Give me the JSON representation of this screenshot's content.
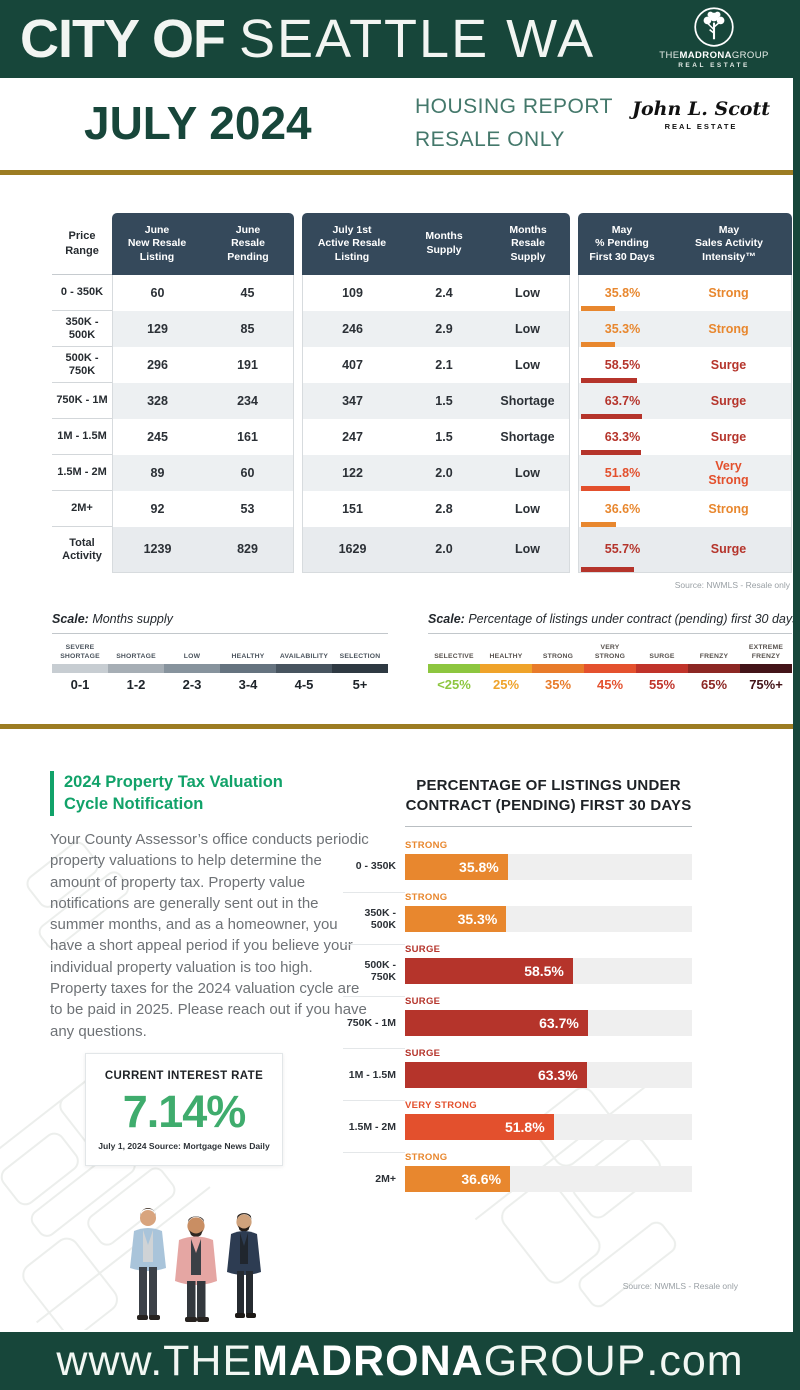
{
  "header": {
    "title_bold": "CITY OF ",
    "title_light": "SEATTLE WA",
    "brand": {
      "the": "THE",
      "name": "MADRONA",
      "group": "GROUP",
      "tagline": "REAL ESTATE"
    }
  },
  "subheader": {
    "month": "JULY 2024",
    "report_line1": "HOUSING REPORT",
    "report_line2": "RESALE ONLY",
    "jls_name": "John L. Scott",
    "jls_tagline": "REAL ESTATE"
  },
  "table": {
    "price_header": "Price\nRange",
    "g1c1": "June\nNew Resale\nListing",
    "g1c2": "June\nResale\nPending",
    "g2c1": "July 1st\nActive Resale\nListing",
    "g2c2": "Months\nSupply",
    "g2c3": "Months\nResale\nSupply",
    "g3c1": "May\n% Pending\nFirst 30 Days",
    "g3c2": "May\nSales Activity\nIntensity™",
    "rows": [
      {
        "price": "0 - 350K",
        "new_listing": "60",
        "pending": "45",
        "active": "109",
        "supply": "2.4",
        "resale_supply": "Low",
        "pct": "35.8%",
        "value": 35.8,
        "intensity": "Strong",
        "color": "#E8872E"
      },
      {
        "price": "350K - 500K",
        "new_listing": "129",
        "pending": "85",
        "active": "246",
        "supply": "2.9",
        "resale_supply": "Low",
        "pct": "35.3%",
        "value": 35.3,
        "intensity": "Strong",
        "color": "#E8872E"
      },
      {
        "price": "500K - 750K",
        "new_listing": "296",
        "pending": "191",
        "active": "407",
        "supply": "2.1",
        "resale_supply": "Low",
        "pct": "58.5%",
        "value": 58.5,
        "intensity": "Surge",
        "color": "#B5342B"
      },
      {
        "price": "750K - 1M",
        "new_listing": "328",
        "pending": "234",
        "active": "347",
        "supply": "1.5",
        "resale_supply": "Shortage",
        "pct": "63.7%",
        "value": 63.7,
        "intensity": "Surge",
        "color": "#B5342B"
      },
      {
        "price": "1M - 1.5M",
        "new_listing": "245",
        "pending": "161",
        "active": "247",
        "supply": "1.5",
        "resale_supply": "Shortage",
        "pct": "63.3%",
        "value": 63.3,
        "intensity": "Surge",
        "color": "#B5342B"
      },
      {
        "price": "1.5M - 2M",
        "new_listing": "89",
        "pending": "60",
        "active": "122",
        "supply": "2.0",
        "resale_supply": "Low",
        "pct": "51.8%",
        "value": 51.8,
        "intensity": "Very\nStrong",
        "color": "#E3502D"
      },
      {
        "price": "2M+",
        "new_listing": "92",
        "pending": "53",
        "active": "151",
        "supply": "2.8",
        "resale_supply": "Low",
        "pct": "36.6%",
        "value": 36.6,
        "intensity": "Strong",
        "color": "#E8872E"
      },
      {
        "price": "Total\nActivity",
        "new_listing": "1239",
        "pending": "829",
        "active": "1629",
        "supply": "2.0",
        "resale_supply": "Low",
        "pct": "55.7%",
        "value": 55.7,
        "intensity": "Surge",
        "color": "#B5342B",
        "is_total": true
      }
    ],
    "source": "Source: NWMLS  -  Resale only"
  },
  "supply_scale": {
    "title_bold": "Scale:",
    "title_rest": " Months supply",
    "segments": [
      {
        "label": "SEVERE\nSHORTAGE",
        "value": "0-1",
        "color": "#C7CDD2"
      },
      {
        "label": "SHORTAGE",
        "value": "1-2",
        "color": "#A6AEB5"
      },
      {
        "label": "LOW",
        "value": "2-3",
        "color": "#87939D"
      },
      {
        "label": "HEALTHY",
        "value": "3-4",
        "color": "#65737F"
      },
      {
        "label": "AVAILABILITY",
        "value": "4-5",
        "color": "#47545F"
      },
      {
        "label": "SELECTION",
        "value": "5+",
        "color": "#2E3942"
      }
    ]
  },
  "pending_scale": {
    "title_bold": "Scale:",
    "title_rest": " Percentage of listings under contract (pending) first 30 days",
    "segments": [
      {
        "label": "SELECTIVE",
        "value": "<25%",
        "color": "#8DC63F"
      },
      {
        "label": "HEALTHY",
        "value": "25%",
        "color": "#EFA32A"
      },
      {
        "label": "STRONG",
        "value": "35%",
        "color": "#E87B2A"
      },
      {
        "label": "VERY\nSTRONG",
        "value": "45%",
        "color": "#E4512E"
      },
      {
        "label": "SURGE",
        "value": "55%",
        "color": "#C0332A"
      },
      {
        "label": "FRENZY",
        "value": "65%",
        "color": "#8C2723"
      },
      {
        "label": "EXTREME\nFRENZY",
        "value": "75%+",
        "color": "#431418"
      }
    ]
  },
  "tax_notice": {
    "heading": "2024 Property Tax Valuation\nCycle Notification",
    "body": "Your County Assessor’s office conducts periodic property valuations to help determine the amount of property tax. Property value notifications are generally sent out in the summer months, and as a homeowner, you have a short appeal period if you believe your individual property valuation is too high. Property taxes for the 2024 valuation cycle are to be paid in 2025. Please reach out if you have any questions."
  },
  "interest_rate": {
    "label": "CURRENT INTEREST RATE",
    "value": "7.14%",
    "source": "July 1, 2024 Source: Mortgage News Daily"
  },
  "chart": {
    "title": "PERCENTAGE OF LISTINGS UNDER\nCONTRACT (PENDING) FIRST 30 DAYS",
    "bars": [
      {
        "category": "0 - 350K",
        "status": "STRONG",
        "label": "35.8%",
        "value": 35.8,
        "color": "#E8872E"
      },
      {
        "category": "350K - 500K",
        "status": "STRONG",
        "label": "35.3%",
        "value": 35.3,
        "color": "#E8872E"
      },
      {
        "category": "500K - 750K",
        "status": "SURGE",
        "label": "58.5%",
        "value": 58.5,
        "color": "#B5342B"
      },
      {
        "category": "750K - 1M",
        "status": "SURGE",
        "label": "63.7%",
        "value": 63.7,
        "color": "#B5342B"
      },
      {
        "category": "1M - 1.5M",
        "status": "SURGE",
        "label": "63.3%",
        "value": 63.3,
        "color": "#B5342B"
      },
      {
        "category": "1.5M - 2M",
        "status": "VERY STRONG",
        "label": "51.8%",
        "value": 51.8,
        "color": "#E3502D"
      },
      {
        "category": "2M+",
        "status": "STRONG",
        "label": "36.6%",
        "value": 36.6,
        "color": "#E8872E"
      }
    ],
    "source": "Source: NWMLS - Resale only"
  },
  "chart_data": [
    {
      "type": "table",
      "columns": [
        "Price Range",
        "June New Resale Listing",
        "June Resale Pending",
        "July 1st Active Resale Listing",
        "Months Supply",
        "Months Resale Supply",
        "May % Pending First 30 Days",
        "May Sales Activity Intensity™"
      ],
      "rows": [
        [
          "0 - 350K",
          60,
          45,
          109,
          2.4,
          "Low",
          "35.8%",
          "Strong"
        ],
        [
          "350K - 500K",
          129,
          85,
          246,
          2.9,
          "Low",
          "35.3%",
          "Strong"
        ],
        [
          "500K - 750K",
          296,
          191,
          407,
          2.1,
          "Low",
          "58.5%",
          "Surge"
        ],
        [
          "750K - 1M",
          328,
          234,
          347,
          1.5,
          "Shortage",
          "63.7%",
          "Surge"
        ],
        [
          "1M - 1.5M",
          245,
          161,
          247,
          1.5,
          "Shortage",
          "63.3%",
          "Surge"
        ],
        [
          "1.5M - 2M",
          89,
          60,
          122,
          2.0,
          "Low",
          "51.8%",
          "Very Strong"
        ],
        [
          "2M+",
          92,
          53,
          151,
          2.8,
          "Low",
          "36.6%",
          "Strong"
        ],
        [
          "Total Activity",
          1239,
          829,
          1629,
          2.0,
          "Low",
          "55.7%",
          "Surge"
        ]
      ],
      "source": "Source: NWMLS - Resale only"
    },
    {
      "type": "bar",
      "orientation": "horizontal",
      "title": "PERCENTAGE OF LISTINGS UNDER CONTRACT (PENDING) FIRST 30 DAYS",
      "categories": [
        "0 - 350K",
        "350K - 500K",
        "500K - 750K",
        "750K - 1M",
        "1M - 1.5M",
        "1.5M - 2M",
        "2M+"
      ],
      "values": [
        35.8,
        35.3,
        58.5,
        63.7,
        63.3,
        51.8,
        36.6
      ],
      "bar_labels": [
        "35.8%",
        "35.3%",
        "58.5%",
        "63.7%",
        "63.3%",
        "51.8%",
        "36.6%"
      ],
      "statuses": [
        "STRONG",
        "STRONG",
        "SURGE",
        "SURGE",
        "SURGE",
        "VERY STRONG",
        "STRONG"
      ],
      "xlim": [
        0,
        100
      ],
      "source": "Source: NWMLS - Resale only"
    }
  ],
  "footer": {
    "p1": "www.",
    "p2": "THE ",
    "p3": "MADRONA",
    "p4": " GROUP",
    "p5": ".com"
  }
}
